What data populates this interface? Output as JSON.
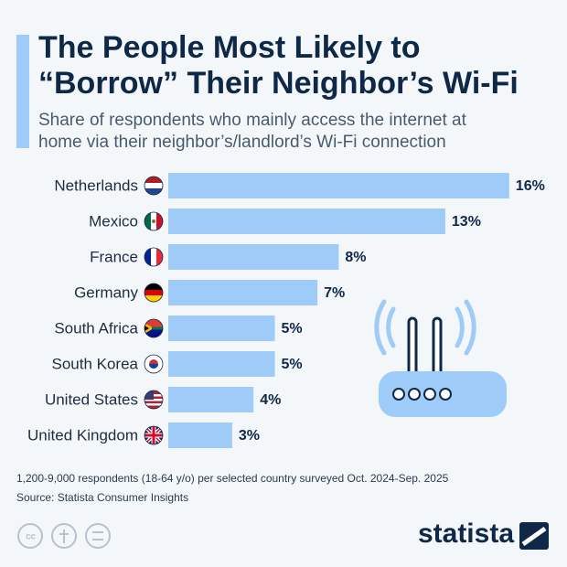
{
  "chart_data": {
    "type": "bar",
    "orientation": "horizontal",
    "title": [
      "The People Most Likely to",
      "“Borrow” Their Neighbor’s Wi-Fi"
    ],
    "subtitle": [
      "Share of respondents who mainly access the internet at",
      "home via their neighbor’s/landlord’s Wi-Fi connection"
    ],
    "categories": [
      "Netherlands",
      "Mexico",
      "France",
      "Germany",
      "South Africa",
      "South Korea",
      "United States",
      "United Kingdom"
    ],
    "values": [
      16,
      13,
      8,
      7,
      5,
      5,
      4,
      3
    ],
    "value_labels": [
      "16%",
      "13%",
      "8%",
      "7%",
      "5%",
      "5%",
      "4%",
      "3%"
    ],
    "color": "#9ecbf7",
    "note": "1,200-9,000 respondents (18-64 y/o) per selected country surveyed Oct. 2024-Sep. 2025",
    "source": "Source: Statista Consumer Insights",
    "brand": "statista"
  }
}
